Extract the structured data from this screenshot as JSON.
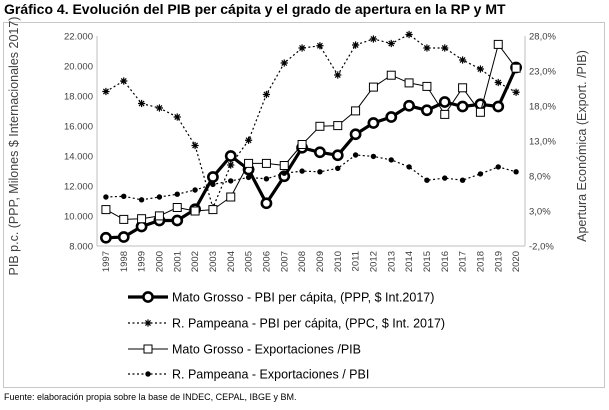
{
  "header": {
    "title": "Gráfico 4. Evolución del PIB per cápita y el grado de apertura en la RP y MT"
  },
  "footer": {
    "source": "Fuente: elaboración propia sobre la base de INDEC, CEPAL, IBGE y BM."
  },
  "chart_data": {
    "type": "line",
    "title": "Gráfico 4. Evolución del PIB per cápita y el grado de apertura en la RP y MT",
    "xlabel": "",
    "ylabel": "PIB p.c.  (PPP, Milones $ Internacionales 2017)",
    "y2label": "Apertura Económica (Export. /PIB)",
    "ylim": [
      8000,
      22000
    ],
    "y2lim": [
      -2,
      28
    ],
    "grid": false,
    "legend_position": "bottom",
    "x": [
      "1997",
      "1998",
      "1999",
      "2000",
      "2001",
      "2002",
      "2003",
      "2004",
      "2005",
      "2006",
      "2007",
      "2008",
      "2009",
      "2010",
      "2011",
      "2012",
      "2013",
      "2014",
      "2015",
      "2016",
      "2017",
      "2018",
      "2019",
      "2020"
    ],
    "yticks": [
      "8.000",
      "10.000",
      "12.000",
      "14.000",
      "16.000",
      "18.000",
      "20.000",
      "22.000"
    ],
    "y2ticks": [
      "-2,0%",
      "3,0%",
      "8,0%",
      "13,0%",
      "18,0%",
      "23,0%",
      "28,0%"
    ],
    "series": [
      {
        "name": "Mato Grosso - PBI per cápita, (PPP, $ Int.2017)",
        "axis": "left",
        "style": "thick-circle",
        "color": "#000000",
        "values": [
          8550,
          8600,
          9300,
          9700,
          9700,
          10450,
          12600,
          14000,
          13100,
          10850,
          12650,
          14550,
          14250,
          14050,
          15450,
          16200,
          16600,
          17350,
          17050,
          17600,
          17300,
          17450,
          17300,
          19900
        ]
      },
      {
        "name": "R. Pampeana - PBI per cápita, (PPC, $ Int. 2017)",
        "axis": "left",
        "style": "dotted-star",
        "color": "#000000",
        "values": [
          18300,
          19000,
          17500,
          17200,
          16600,
          14700,
          10550,
          13400,
          15050,
          18100,
          20200,
          21200,
          21350,
          19400,
          21400,
          21800,
          21500,
          22100,
          21200,
          21200,
          20400,
          19800,
          18900,
          18250
        ]
      },
      {
        "name": "Mato Grosso - Exportaciones /PIB",
        "axis": "right",
        "style": "thin-square",
        "color": "#000000",
        "values": [
          3.2,
          1.8,
          1.9,
          2.3,
          3.5,
          3.0,
          3.2,
          5.0,
          9.8,
          9.8,
          9.5,
          12.5,
          15.1,
          15.2,
          17.3,
          20.7,
          22.4,
          21.3,
          20.8,
          16.8,
          20.6,
          17.1,
          26.8,
          23.4
        ]
      },
      {
        "name": "R. Pampeana - Exportaciones / PBI",
        "axis": "right",
        "style": "dotted-dot",
        "color": "#000000",
        "values": [
          5.0,
          5.1,
          4.6,
          5.0,
          5.4,
          6.0,
          6.8,
          7.3,
          7.8,
          7.6,
          8.4,
          8.7,
          8.6,
          9.1,
          11.0,
          10.8,
          10.3,
          9.3,
          7.4,
          7.7,
          7.4,
          8.3,
          9.3,
          8.6
        ]
      }
    ]
  }
}
